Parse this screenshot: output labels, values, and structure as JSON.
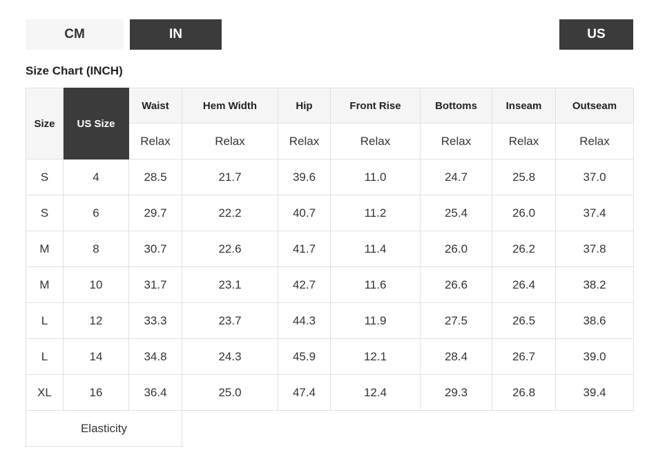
{
  "toggles": {
    "cm": "CM",
    "in": "IN",
    "us": "US",
    "active_unit": "IN"
  },
  "heading": "Size Chart (INCH)",
  "colors": {
    "dark": "#3b3b3b",
    "light_button": "#f5f5f5",
    "header_bg": "#f5f5f6",
    "border": "#e0e0e0",
    "text": "#333333"
  },
  "table": {
    "size_label": "Size",
    "us_size_label": "US Size",
    "measure_columns": [
      "Waist",
      "Hem Width",
      "Hip",
      "Front Rise",
      "Bottoms",
      "Inseam",
      "Outseam"
    ],
    "fit_values": [
      "Relax",
      "Relax",
      "Relax",
      "Relax",
      "Relax",
      "Relax",
      "Relax"
    ],
    "rows": [
      {
        "size": "S",
        "us_size": "4",
        "values": [
          "28.5",
          "21.7",
          "39.6",
          "11.0",
          "24.7",
          "25.8",
          "37.0"
        ]
      },
      {
        "size": "S",
        "us_size": "6",
        "values": [
          "29.7",
          "22.2",
          "40.7",
          "11.2",
          "25.4",
          "26.0",
          "37.4"
        ]
      },
      {
        "size": "M",
        "us_size": "8",
        "values": [
          "30.7",
          "22.6",
          "41.7",
          "11.4",
          "26.0",
          "26.2",
          "37.8"
        ]
      },
      {
        "size": "M",
        "us_size": "10",
        "values": [
          "31.7",
          "23.1",
          "42.7",
          "11.6",
          "26.6",
          "26.4",
          "38.2"
        ]
      },
      {
        "size": "L",
        "us_size": "12",
        "values": [
          "33.3",
          "23.7",
          "44.3",
          "11.9",
          "27.5",
          "26.5",
          "38.6"
        ]
      },
      {
        "size": "L",
        "us_size": "14",
        "values": [
          "34.8",
          "24.3",
          "45.9",
          "12.1",
          "28.4",
          "26.7",
          "39.0"
        ]
      },
      {
        "size": "XL",
        "us_size": "16",
        "values": [
          "36.4",
          "25.0",
          "47.4",
          "12.4",
          "29.3",
          "26.8",
          "39.4"
        ]
      }
    ],
    "footer_label": "Elasticity"
  }
}
